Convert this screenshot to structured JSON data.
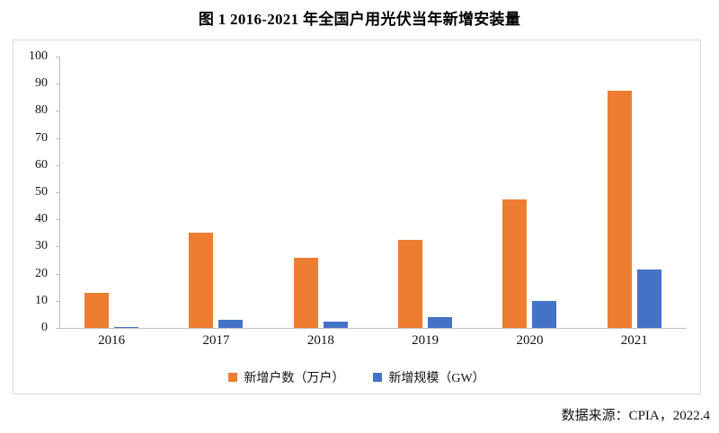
{
  "title": "图 1 2016-2021 年全国户用光伏当年新增安装量",
  "source": "数据来源：CPIA，2022.4",
  "chart_data": {
    "type": "bar",
    "categories": [
      "2016",
      "2017",
      "2018",
      "2019",
      "2020",
      "2021"
    ],
    "series": [
      {
        "name": "新增户数（万户）",
        "color": "#ED7D31",
        "values": [
          13,
          35,
          26,
          32.5,
          47.5,
          87.5
        ]
      },
      {
        "name": "新增规模（GW）",
        "color": "#4472C4",
        "values": [
          0.5,
          3,
          2.5,
          4,
          10,
          21.5
        ]
      }
    ],
    "ylabel": "",
    "xlabel": "",
    "ylim": [
      0,
      100
    ],
    "y_ticks": [
      0,
      10,
      20,
      30,
      40,
      50,
      60,
      70,
      80,
      90,
      100
    ],
    "grid": false,
    "legend_position": "bottom",
    "axis_color": "#BFBFBF",
    "frame_border_color": "#D9D9D9"
  }
}
